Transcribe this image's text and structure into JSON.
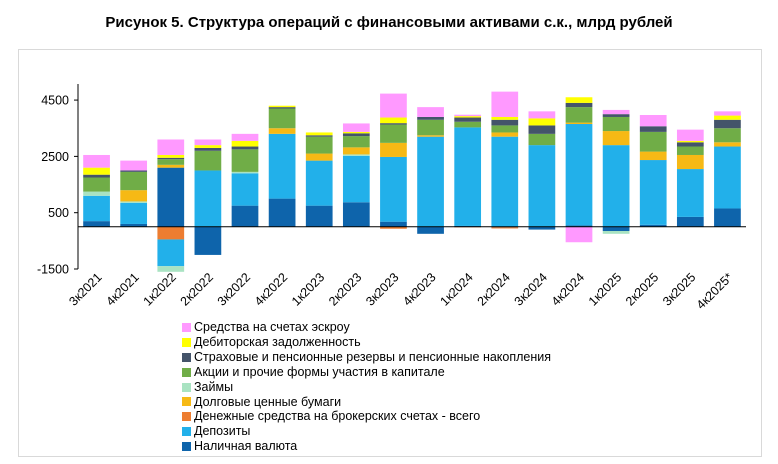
{
  "title": "Рисунок 5. Структура операций с финансовыми активами с.к., млрд рублей",
  "legend": [
    {
      "label": "Средства на счетах эскроу",
      "color": "#ff99ff"
    },
    {
      "label": "Дебиторская задолженность",
      "color": "#ffff00"
    },
    {
      "label": "Страховые и пенсионные резервы и пенсионные накопления",
      "color": "#44546a"
    },
    {
      "label": "Акции и прочие формы участия в капитале",
      "color": "#70ad47"
    },
    {
      "label": "Займы",
      "color": "#a9e3c2"
    },
    {
      "label": "Долговые ценные бумаги",
      "color": "#f6b915"
    },
    {
      "label": "Денежные средства на брокерских счетах - всего",
      "color": "#ed7d31"
    },
    {
      "label": "Депозиты",
      "color": "#22b0ea"
    },
    {
      "label": "Наличная валюта",
      "color": "#0e64ab"
    }
  ],
  "chart_data": {
    "type": "bar",
    "stacked": true,
    "categories": [
      "3к2021",
      "4к2021",
      "1к2022",
      "2к2022",
      "3к2022",
      "4к2022",
      "1к2023",
      "2к2023",
      "3к2023",
      "4к2023",
      "1к2024",
      "2к2024",
      "3к2024",
      "4к2024",
      "1к2025",
      "2к2025",
      "3к2025",
      "4к2025*"
    ],
    "ylim": [
      -1500,
      5000
    ],
    "yticks": [
      -1500,
      500,
      2500,
      4500
    ],
    "grid": false,
    "legend_position": "bottom",
    "series": [
      {
        "name": "Наличная валюта",
        "color": "#0e64ab",
        "values": [
          200,
          100,
          2100,
          -1000,
          750,
          1000,
          750,
          870,
          180,
          -250,
          30,
          -20,
          -100,
          50,
          -150,
          70,
          350,
          650
        ]
      },
      {
        "name": "Денежные средства на брокерских счетах - всего",
        "color": "#ed7d31",
        "values": [
          0,
          0,
          -450,
          0,
          0,
          0,
          0,
          0,
          -70,
          0,
          -20,
          -40,
          0,
          0,
          0,
          0,
          0,
          0
        ]
      },
      {
        "name": "Депозиты",
        "color": "#22b0ea",
        "values": [
          900,
          750,
          -950,
          2000,
          1150,
          2300,
          1600,
          1650,
          2300,
          3200,
          3500,
          3200,
          2900,
          3600,
          2900,
          2300,
          1700,
          2200
        ]
      },
      {
        "name": "Займы",
        "color": "#a9e3c2",
        "values": [
          150,
          50,
          -200,
          0,
          50,
          0,
          0,
          50,
          0,
          0,
          0,
          0,
          0,
          0,
          -100,
          0,
          0,
          0
        ]
      },
      {
        "name": "Долговые ценные бумаги",
        "color": "#f6b915",
        "values": [
          0,
          400,
          100,
          0,
          0,
          200,
          250,
          250,
          500,
          50,
          0,
          150,
          0,
          50,
          500,
          300,
          500,
          150
        ]
      },
      {
        "name": "Акции и прочие формы участия в капитале",
        "color": "#70ad47",
        "values": [
          500,
          650,
          200,
          700,
          800,
          700,
          600,
          400,
          650,
          550,
          200,
          250,
          400,
          550,
          500,
          700,
          300,
          500
        ]
      },
      {
        "name": "Страховые и пенсионные резервы и пенсионные накопления",
        "color": "#44546a",
        "values": [
          100,
          50,
          50,
          100,
          100,
          50,
          50,
          100,
          50,
          100,
          150,
          200,
          300,
          150,
          100,
          200,
          150,
          300
        ]
      },
      {
        "name": "Дебиторская задолженность",
        "color": "#ffff00",
        "values": [
          250,
          0,
          100,
          100,
          200,
          50,
          100,
          50,
          200,
          0,
          50,
          100,
          250,
          200,
          0,
          0,
          50,
          150
        ]
      },
      {
        "name": "Средства на счетах эскроу",
        "color": "#ff99ff",
        "values": [
          450,
          350,
          550,
          200,
          250,
          0,
          0,
          300,
          850,
          350,
          50,
          900,
          250,
          0,
          150,
          400,
          400,
          150
        ]
      },
      {
        "name": "Средства на счетах эскроу (отток)",
        "color": "#ff99ff",
        "legend": false,
        "values": [
          0,
          0,
          0,
          0,
          0,
          0,
          0,
          0,
          0,
          0,
          0,
          0,
          0,
          -550,
          0,
          0,
          0,
          0
        ]
      }
    ]
  }
}
